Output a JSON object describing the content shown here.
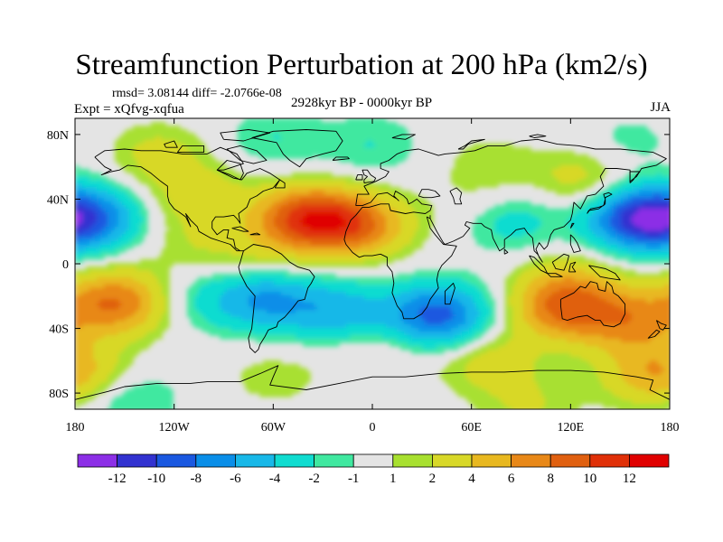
{
  "chart_data": {
    "type": "heatmap",
    "title": "Streamfunction Perturbation at 200 hPa (km2/s)",
    "stats_line": "rmsd= 3.08144  diff= -2.0766e-08",
    "subtitle": "2928kyr BP - 0000kyr BP",
    "experiment": "Expt = xQfvg-xqfua",
    "season": "JJA",
    "x_ticks": [
      {
        "value": -180,
        "label": "180"
      },
      {
        "value": -120,
        "label": "120W"
      },
      {
        "value": -60,
        "label": "60W"
      },
      {
        "value": 0,
        "label": "0"
      },
      {
        "value": 60,
        "label": "60E"
      },
      {
        "value": 120,
        "label": "120E"
      },
      {
        "value": 180,
        "label": "180"
      }
    ],
    "y_ticks": [
      {
        "value": 80,
        "label": "80N"
      },
      {
        "value": 40,
        "label": "40N"
      },
      {
        "value": 0,
        "label": "0"
      },
      {
        "value": -40,
        "label": "40S"
      },
      {
        "value": -80,
        "label": "80S"
      }
    ],
    "xlim": [
      -180,
      180
    ],
    "ylim": [
      -90,
      90
    ],
    "colorbar": {
      "colors": [
        "#8c2fe6",
        "#3232d0",
        "#1a58e0",
        "#0a8ee8",
        "#18b8e8",
        "#10dcd0",
        "#40e8a0",
        "#e4e4e4",
        "#a8e030",
        "#d8d828",
        "#e8b820",
        "#e88818",
        "#e06010",
        "#e03008",
        "#e00000"
      ],
      "labels": [
        "-12",
        "-10",
        "-8",
        "-6",
        "-4",
        "-2",
        "-1",
        "1",
        "2",
        "4",
        "6",
        "8",
        "10",
        "12"
      ]
    },
    "anomaly_centers": [
      {
        "lon": -170,
        "lat": 28,
        "value": -7
      },
      {
        "lon": -155,
        "lat": -24,
        "value": 8
      },
      {
        "lon": -130,
        "lat": 68,
        "value": 2.5
      },
      {
        "lon": -105,
        "lat": 42,
        "value": 3
      },
      {
        "lon": -70,
        "lat": 5,
        "value": 2
      },
      {
        "lon": -40,
        "lat": 28,
        "value": 10
      },
      {
        "lon": -8,
        "lat": 24,
        "value": 7
      },
      {
        "lon": -110,
        "lat": 12,
        "value": 1.5
      },
      {
        "lon": 70,
        "lat": 35,
        "value": 2
      },
      {
        "lon": -60,
        "lat": 78,
        "value": -2
      },
      {
        "lon": 0,
        "lat": 73,
        "value": -2
      },
      {
        "lon": 155,
        "lat": 75,
        "value": -1.5
      },
      {
        "lon": 70,
        "lat": 62,
        "value": 1.5
      },
      {
        "lon": 128,
        "lat": 52,
        "value": 3
      },
      {
        "lon": 82,
        "lat": 28,
        "value": -4
      },
      {
        "lon": 160,
        "lat": 28,
        "value": -10
      },
      {
        "lon": -105,
        "lat": -22,
        "value": -2
      },
      {
        "lon": -65,
        "lat": -22,
        "value": -6
      },
      {
        "lon": -20,
        "lat": -30,
        "value": -5
      },
      {
        "lon": 40,
        "lat": -32,
        "value": -9
      },
      {
        "lon": 0,
        "lat": -55,
        "value": 1.5
      },
      {
        "lon": -165,
        "lat": -70,
        "value": 2
      },
      {
        "lon": -60,
        "lat": -70,
        "value": 1.5
      },
      {
        "lon": 70,
        "lat": -60,
        "value": 3
      },
      {
        "lon": 115,
        "lat": -28,
        "value": 7
      },
      {
        "lon": 155,
        "lat": -35,
        "value": 6
      },
      {
        "lon": 120,
        "lat": -12,
        "value": 3
      },
      {
        "lon": 170,
        "lat": -68,
        "value": 5
      },
      {
        "lon": -150,
        "lat": -82,
        "value": -3
      },
      {
        "lon": 95,
        "lat": -88,
        "value": 2
      }
    ]
  }
}
